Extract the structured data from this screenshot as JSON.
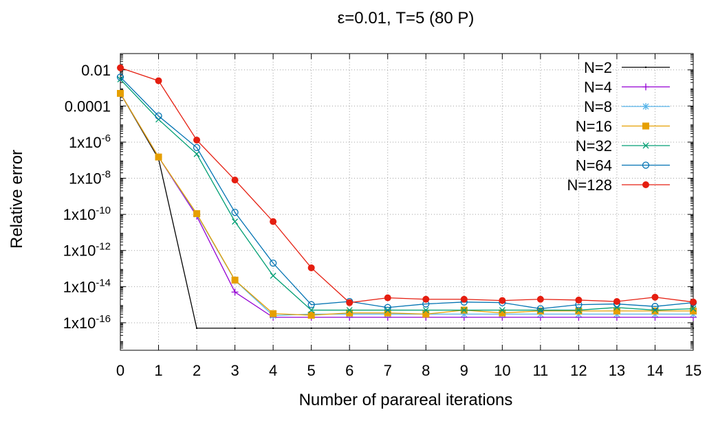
{
  "chart_data": {
    "type": "line",
    "title": "ε=0.01, T=5 (80 P)",
    "xlabel": "Number of parareal iterations",
    "ylabel": "Relative error",
    "x": [
      0,
      1,
      2,
      3,
      4,
      5,
      6,
      7,
      8,
      9,
      10,
      11,
      12,
      13,
      14,
      15
    ],
    "xlim": [
      0,
      15
    ],
    "ylim": [
      3e-18,
      0.08
    ],
    "yscale": "log",
    "grid": true,
    "legend_position": "top-right",
    "x_ticks": [
      "0",
      "1",
      "2",
      "3",
      "4",
      "5",
      "6",
      "7",
      "8",
      "9",
      "10",
      "11",
      "12",
      "13",
      "14",
      "15"
    ],
    "y_ticks": [
      {
        "value": 0.01,
        "base": "0.01",
        "exp": ""
      },
      {
        "value": 0.0001,
        "base": "0.0001",
        "exp": ""
      },
      {
        "value": 1e-06,
        "base": "1x10",
        "exp": "-6"
      },
      {
        "value": 1e-08,
        "base": "1x10",
        "exp": "-8"
      },
      {
        "value": 1e-10,
        "base": "1x10",
        "exp": "-10"
      },
      {
        "value": 1e-12,
        "base": "1x10",
        "exp": "-12"
      },
      {
        "value": 1e-14,
        "base": "1x10",
        "exp": "-14"
      },
      {
        "value": 1e-16,
        "base": "1x10",
        "exp": "-16"
      }
    ],
    "series": [
      {
        "name": "N=2",
        "color": "#000000",
        "marker": "dot",
        "values": [
          0.0005,
          1.2e-07,
          5e-17,
          5e-17,
          5e-17,
          5e-17,
          5e-17,
          5e-17,
          5e-17,
          5e-17,
          5e-17,
          5e-17,
          5e-17,
          5e-17,
          5e-17,
          5e-17
        ]
      },
      {
        "name": "N=4",
        "color": "#9400d3",
        "marker": "plus",
        "values": [
          0.0005,
          1.5e-07,
          8e-11,
          5e-15,
          2e-16,
          2e-16,
          2e-16,
          2e-16,
          2e-16,
          2e-16,
          2e-16,
          2e-16,
          2e-16,
          2e-16,
          2e-16,
          2e-16
        ]
      },
      {
        "name": "N=8",
        "color": "#56b4e9",
        "marker": "star",
        "values": [
          0.0005,
          1.5e-07,
          1e-10,
          2.2e-14,
          2.5e-16,
          3e-16,
          3e-16,
          3e-16,
          3e-16,
          3e-16,
          3e-16,
          3e-16,
          3e-16,
          3e-16,
          3e-16,
          3e-16
        ]
      },
      {
        "name": "N=16",
        "color": "#e69f00",
        "marker": "square",
        "values": [
          0.0005,
          1.5e-07,
          1.1e-10,
          2.3e-14,
          3.2e-16,
          2.6e-16,
          3.5e-16,
          3.5e-16,
          3e-16,
          5e-16,
          3.5e-16,
          4.5e-16,
          4.5e-16,
          4.5e-16,
          4.5e-16,
          4.5e-16
        ]
      },
      {
        "name": "N=32",
        "color": "#009e73",
        "marker": "cross",
        "values": [
          0.003,
          1.8e-05,
          2.2e-07,
          4e-11,
          4e-14,
          5e-16,
          5e-16,
          5e-16,
          5e-16,
          5e-16,
          5e-16,
          5e-16,
          5e-16,
          7e-16,
          5e-16,
          6e-16
        ]
      },
      {
        "name": "N=64",
        "color": "#0072b2",
        "marker": "circle",
        "values": [
          0.004,
          2.8e-05,
          5e-07,
          1.3e-10,
          2e-13,
          1e-15,
          1.5e-15,
          7e-16,
          1.1e-15,
          1.4e-15,
          1.3e-15,
          6e-16,
          1e-15,
          1.1e-15,
          8e-16,
          1.3e-15
        ]
      },
      {
        "name": "N=128",
        "color": "#e51e10",
        "marker": "filled-circle",
        "values": [
          0.013,
          0.0025,
          1.3e-06,
          8e-09,
          4e-11,
          1.1e-13,
          1.3e-15,
          2.4e-15,
          2e-15,
          2e-15,
          1.7e-15,
          2e-15,
          1.8e-15,
          1.5e-15,
          2.6e-15,
          1.4e-15
        ]
      }
    ]
  }
}
